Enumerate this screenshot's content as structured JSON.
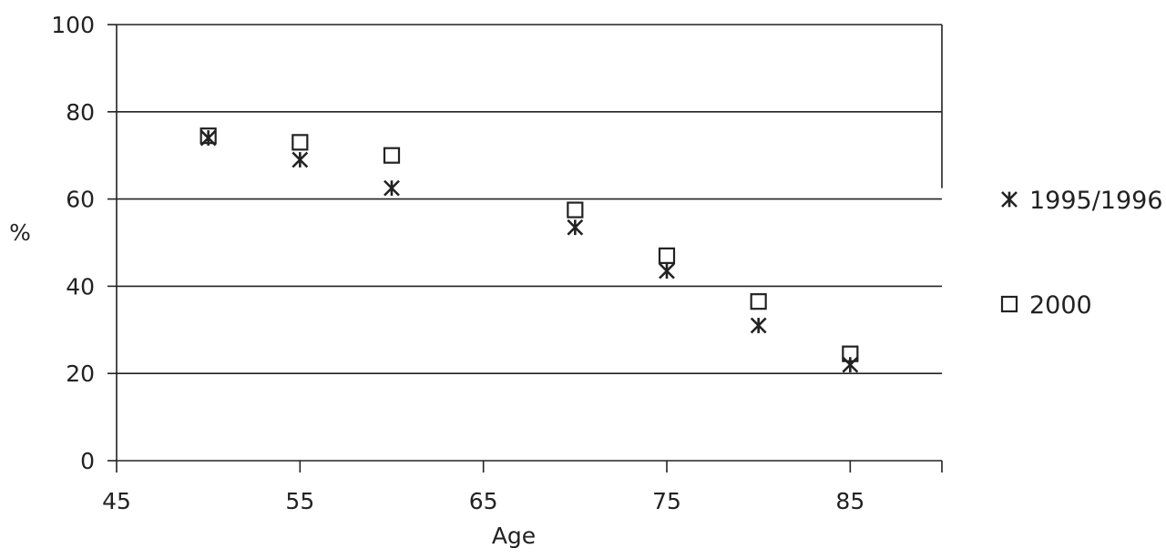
{
  "chart_data": {
    "type": "scatter",
    "title": "",
    "xlabel": "Age",
    "ylabel": "%",
    "xlim": [
      45,
      90
    ],
    "ylim": [
      0,
      100
    ],
    "xticks": [
      45,
      55,
      65,
      75,
      85
    ],
    "yticks": [
      0,
      20,
      40,
      60,
      80,
      100
    ],
    "grid": "horizontal",
    "legend": "right",
    "series": [
      {
        "name": "1995/1996",
        "marker": "asterisk",
        "color": "#222222",
        "x": [
          50,
          55,
          60,
          70,
          75,
          80,
          85
        ],
        "y": [
          74,
          69,
          62.5,
          53.5,
          43.5,
          31,
          22
        ]
      },
      {
        "name": "2000",
        "marker": "square",
        "color": "#222222",
        "x": [
          50,
          55,
          60,
          70,
          75,
          80,
          85
        ],
        "y": [
          74.5,
          73,
          70,
          57.5,
          47,
          36.5,
          24.5
        ]
      }
    ]
  }
}
